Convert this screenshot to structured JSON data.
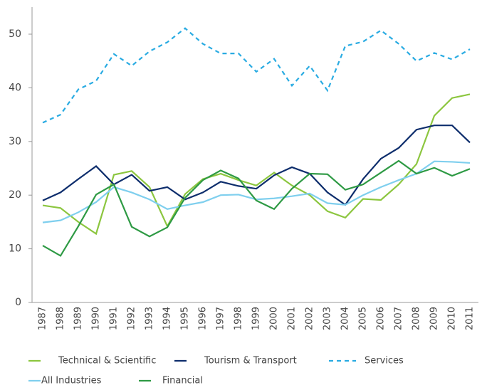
{
  "chart_data": {
    "type": "line",
    "categories": [
      "1987",
      "1988",
      "1989",
      "1990",
      "1991",
      "1992",
      "1993",
      "1994",
      "1995",
      "1996",
      "1997",
      "1998",
      "1999",
      "2000",
      "2001",
      "2002",
      "2003",
      "2004",
      "2005",
      "2006",
      "2007",
      "2008",
      "2009",
      "2010",
      "2011"
    ],
    "ylim": [
      0,
      55
    ],
    "yticks": [
      0,
      10,
      20,
      30,
      40,
      50
    ],
    "series": [
      {
        "name": "Technical & Scientific",
        "color": "#8cc63f",
        "style": "solid",
        "values": [
          18.1,
          17.6,
          15,
          12.8,
          23.8,
          24.5,
          21.5,
          14.2,
          20.2,
          23,
          24,
          22.8,
          21.8,
          24.2,
          21.8,
          20,
          17,
          15.8,
          19.3,
          19.1,
          22,
          25.8,
          34.8,
          38.1,
          38.8
        ]
      },
      {
        "name": "Tourism & Transport",
        "color": "#0d2d6c",
        "style": "solid",
        "values": [
          19,
          20.5,
          23,
          25.4,
          22,
          23.8,
          20.8,
          21.5,
          19.2,
          20.5,
          22.5,
          21.7,
          21.2,
          23.7,
          25.2,
          24,
          20.5,
          18.2,
          23,
          26.8,
          28.8,
          32.2,
          33,
          33,
          29.8
        ]
      },
      {
        "name": "Services",
        "color": "#29abe2",
        "style": "dashed",
        "values": [
          33.5,
          35,
          39.7,
          41.3,
          46.3,
          44.1,
          46.8,
          48.5,
          51.1,
          48.2,
          46.4,
          46.4,
          43,
          45.4,
          40.4,
          44.1,
          39.5,
          47.8,
          48.6,
          50.7,
          48.2,
          45,
          46.5,
          45.3,
          47.2
        ]
      },
      {
        "name": "All Industries",
        "color": "#7fcfee",
        "style": "solid",
        "values": [
          14.9,
          15.3,
          16.8,
          18.7,
          21.5,
          20.5,
          19.2,
          17.4,
          18.1,
          18.7,
          20,
          20.1,
          19.2,
          19.4,
          19.8,
          20.3,
          18.5,
          18.2,
          20,
          21.5,
          22.8,
          24,
          26.3,
          26.2,
          26
        ]
      },
      {
        "name": "Financial",
        "color": "#2e9a44",
        "style": "solid",
        "values": [
          10.6,
          8.7,
          14.2,
          20.1,
          22,
          14.1,
          12.3,
          14,
          19.5,
          22.8,
          24.6,
          23.1,
          19,
          17.4,
          21.2,
          24,
          23.9,
          21,
          22,
          24.2,
          26.4,
          24,
          25.1,
          23.6,
          24.9
        ]
      }
    ]
  }
}
